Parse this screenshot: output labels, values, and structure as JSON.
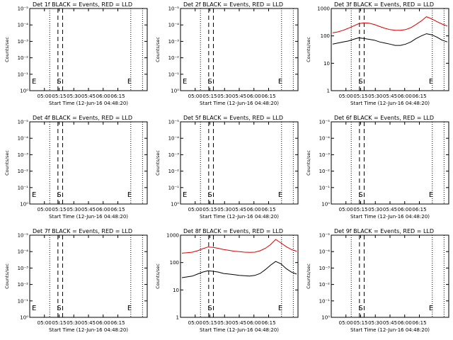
{
  "panel_size": [
    213,
    160
  ],
  "panels": [
    {
      "id": "det1",
      "title": "Det 1f BLACK = Events, RED = LLD",
      "ylabel": "Counts/sec",
      "xlabel": "Start Time (12-Jun-16 04:48:20)",
      "y_scale": "log",
      "y_ticks": [
        "10⁰",
        "10⁻¹",
        "10⁻²",
        "10⁻³",
        "10⁻⁴",
        "10⁻⁵"
      ],
      "x_ticks": [
        "05:00",
        "05:15",
        "05:30",
        "05:45",
        "06:00",
        "06:15"
      ],
      "markers": {
        "start": "S",
        "end": "E",
        "edge": "E"
      },
      "black": [],
      "red": []
    },
    {
      "id": "det2",
      "title": "Det 2f BLACK = Events, RED = LLD",
      "ylabel": "Counts/sec",
      "xlabel": "Start Time (12-Jun-16 04:48:20)",
      "y_scale": "log",
      "y_ticks": [
        "10⁰",
        "10⁻¹",
        "10⁻²",
        "10⁻³",
        "10⁻⁴",
        "10⁻⁵"
      ],
      "x_ticks": [
        "05:00",
        "05:15",
        "05:30",
        "05:45",
        "06:00",
        "06:15"
      ],
      "markers": {
        "start": "S",
        "end": "E",
        "edge": "E"
      },
      "black": [],
      "red": []
    },
    {
      "id": "det3",
      "title": "Det 3f BLACK = Events, RED = LLD",
      "ylabel": "Counts/sec",
      "xlabel": "Start Time (12-Jun-16 04:48:20)",
      "y_scale": "log",
      "y_ticks": [
        "1",
        "10",
        "100",
        "1000"
      ],
      "x_ticks": [
        "05:00",
        "05:15",
        "05:30",
        "05:45",
        "06:00",
        "06:15"
      ],
      "markers": {
        "start": "S",
        "end": "E",
        "edge": ""
      },
      "black": [
        [
          0,
          50
        ],
        [
          1,
          55
        ],
        [
          2,
          60
        ],
        [
          3,
          65
        ],
        [
          4,
          75
        ],
        [
          5,
          85
        ],
        [
          6,
          80
        ],
        [
          7,
          75
        ],
        [
          8,
          70
        ],
        [
          9,
          60
        ],
        [
          10,
          55
        ],
        [
          11,
          50
        ],
        [
          12,
          45
        ],
        [
          13,
          45
        ],
        [
          14,
          50
        ],
        [
          15,
          60
        ],
        [
          16,
          80
        ],
        [
          17,
          100
        ],
        [
          18,
          120
        ],
        [
          19,
          110
        ],
        [
          20,
          90
        ],
        [
          21,
          70
        ],
        [
          22,
          60
        ]
      ],
      "red": [
        [
          0,
          130
        ],
        [
          1,
          140
        ],
        [
          2,
          160
        ],
        [
          3,
          190
        ],
        [
          4,
          230
        ],
        [
          5,
          280
        ],
        [
          6,
          300
        ],
        [
          7,
          290
        ],
        [
          8,
          260
        ],
        [
          9,
          220
        ],
        [
          10,
          190
        ],
        [
          11,
          170
        ],
        [
          12,
          160
        ],
        [
          13,
          160
        ],
        [
          14,
          170
        ],
        [
          15,
          200
        ],
        [
          16,
          260
        ],
        [
          17,
          350
        ],
        [
          18,
          500
        ],
        [
          19,
          420
        ],
        [
          20,
          330
        ],
        [
          21,
          270
        ],
        [
          22,
          230
        ]
      ]
    },
    {
      "id": "det4",
      "title": "Det 4f BLACK = Events, RED = LLD",
      "ylabel": "Counts/sec",
      "xlabel": "Start Time (12-Jun-16 04:48:20)",
      "y_scale": "log",
      "y_ticks": [
        "10⁰",
        "10⁻¹",
        "10⁻²",
        "10⁻³",
        "10⁻⁴",
        "10⁻⁵"
      ],
      "x_ticks": [
        "05:00",
        "05:15",
        "05:30",
        "05:45",
        "06:00",
        "06:15"
      ],
      "markers": {
        "start": "S",
        "end": "E",
        "edge": "E"
      },
      "black": [],
      "red": []
    },
    {
      "id": "det5",
      "title": "Det 5f BLACK = Events, RED = LLD",
      "ylabel": "Counts/sec",
      "xlabel": "Start Time (12-Jun-16 04:48:20)",
      "y_scale": "log",
      "y_ticks": [
        "10⁰",
        "10⁻¹",
        "10⁻²",
        "10⁻³",
        "10⁻⁴",
        "10⁻⁵"
      ],
      "x_ticks": [
        "05:00",
        "05:15",
        "05:30",
        "05:45",
        "06:00",
        "06:15"
      ],
      "markers": {
        "start": "S",
        "end": "E",
        "edge": "E"
      },
      "black": [],
      "red": []
    },
    {
      "id": "det6",
      "title": "Det 6f BLACK = Events, RED = LLD",
      "ylabel": "Counts/sec",
      "xlabel": "Start Time (12-Jun-16 04:48:20)",
      "y_scale": "log",
      "y_ticks": [
        "10⁰",
        "10⁻¹",
        "10⁻²",
        "10⁻³",
        "10⁻⁴",
        "10⁻⁵"
      ],
      "x_ticks": [
        "05:00",
        "05:15",
        "05:30",
        "05:45",
        "06:00",
        "06:15"
      ],
      "markers": {
        "start": "S",
        "end": "E",
        "edge": ""
      },
      "black": [],
      "red": []
    },
    {
      "id": "det7",
      "title": "Det 7f BLACK = Events, RED = LLD",
      "ylabel": "Counts/sec",
      "xlabel": "Start Time (12-Jun-16 04:48:20)",
      "y_scale": "log",
      "y_ticks": [
        "10⁰",
        "10⁻¹",
        "10⁻²",
        "10⁻³",
        "10⁻⁴",
        "10⁻⁵"
      ],
      "x_ticks": [
        "05:00",
        "05:15",
        "05:30",
        "05:45",
        "06:00",
        "06:15"
      ],
      "markers": {
        "start": "S",
        "end": "E",
        "edge": "E"
      },
      "black": [],
      "red": []
    },
    {
      "id": "det8",
      "title": "Det 8f BLACK = Events, RED = LLD",
      "ylabel": "Counts/sec",
      "xlabel": "Start Time (12-Jun-16 04:48:20)",
      "y_scale": "log",
      "y_ticks": [
        "1",
        "10",
        "100",
        "1000"
      ],
      "x_ticks": [
        "05:00",
        "05:15",
        "05:30",
        "05:45",
        "06:00",
        "06:15"
      ],
      "markers": {
        "start": "S",
        "end": "E",
        "edge": ""
      },
      "black": [
        [
          0,
          28
        ],
        [
          1,
          30
        ],
        [
          2,
          32
        ],
        [
          3,
          38
        ],
        [
          4,
          45
        ],
        [
          5,
          50
        ],
        [
          6,
          48
        ],
        [
          7,
          45
        ],
        [
          8,
          40
        ],
        [
          9,
          38
        ],
        [
          10,
          36
        ],
        [
          11,
          34
        ],
        [
          12,
          33
        ],
        [
          13,
          32
        ],
        [
          14,
          34
        ],
        [
          15,
          40
        ],
        [
          16,
          55
        ],
        [
          17,
          80
        ],
        [
          18,
          110
        ],
        [
          19,
          90
        ],
        [
          20,
          60
        ],
        [
          21,
          45
        ],
        [
          22,
          38
        ]
      ],
      "red": [
        [
          0,
          220
        ],
        [
          1,
          230
        ],
        [
          2,
          240
        ],
        [
          3,
          270
        ],
        [
          4,
          320
        ],
        [
          5,
          370
        ],
        [
          6,
          360
        ],
        [
          7,
          330
        ],
        [
          8,
          300
        ],
        [
          9,
          280
        ],
        [
          10,
          260
        ],
        [
          11,
          250
        ],
        [
          12,
          240
        ],
        [
          13,
          235
        ],
        [
          14,
          240
        ],
        [
          15,
          270
        ],
        [
          16,
          330
        ],
        [
          17,
          450
        ],
        [
          18,
          700
        ],
        [
          19,
          520
        ],
        [
          20,
          380
        ],
        [
          21,
          300
        ],
        [
          22,
          260
        ]
      ]
    },
    {
      "id": "det9",
      "title": "Det 9f BLACK = Events, RED = LLD",
      "ylabel": "Counts/sec",
      "xlabel": "Start Time (12-Jun-16 04:48:20)",
      "y_scale": "log",
      "y_ticks": [
        "10⁰",
        "10⁻¹",
        "10⁻²",
        "10⁻³",
        "10⁻⁴",
        "10⁻⁵"
      ],
      "x_ticks": [
        "05:00",
        "05:15",
        "05:30",
        "05:45",
        "06:00",
        "06:15"
      ],
      "markers": {
        "start": "S",
        "end": "E",
        "edge": ""
      },
      "black": [],
      "red": []
    }
  ],
  "colors": {
    "events": "#000000",
    "lld": "#dd0000",
    "axis": "#000000"
  },
  "chart_data": [
    {
      "type": "line",
      "title": "Det 3f BLACK = Events, RED = LLD",
      "xlabel": "Start Time (12-Jun-16 04:48:20)",
      "ylabel": "Counts/sec",
      "y_scale": "log",
      "ylim": [
        1,
        1000
      ],
      "x": [
        "04:50",
        "04:55",
        "05:00",
        "05:05",
        "05:10",
        "05:15",
        "05:20",
        "05:25",
        "05:30",
        "05:35",
        "05:40",
        "05:45",
        "05:50",
        "05:55",
        "06:00",
        "06:05",
        "06:10",
        "06:15",
        "06:20",
        "06:25",
        "06:30",
        "06:35",
        "06:40"
      ],
      "series": [
        {
          "name": "BLACK = Events",
          "values": [
            50,
            55,
            60,
            65,
            75,
            85,
            80,
            75,
            70,
            60,
            55,
            50,
            45,
            45,
            50,
            60,
            80,
            100,
            120,
            110,
            90,
            70,
            60
          ]
        },
        {
          "name": "RED = LLD",
          "values": [
            130,
            140,
            160,
            190,
            230,
            280,
            300,
            290,
            260,
            220,
            190,
            170,
            160,
            160,
            170,
            200,
            260,
            350,
            500,
            420,
            330,
            270,
            230
          ]
        }
      ]
    },
    {
      "type": "line",
      "title": "Det 8f BLACK = Events, RED = LLD",
      "xlabel": "Start Time (12-Jun-16 04:48:20)",
      "ylabel": "Counts/sec",
      "y_scale": "log",
      "ylim": [
        1,
        1000
      ],
      "x": [
        "04:50",
        "04:55",
        "05:00",
        "05:05",
        "05:10",
        "05:15",
        "05:20",
        "05:25",
        "05:30",
        "05:35",
        "05:40",
        "05:45",
        "05:50",
        "05:55",
        "06:00",
        "06:05",
        "06:10",
        "06:15",
        "06:20",
        "06:25",
        "06:30",
        "06:35",
        "06:40"
      ],
      "series": [
        {
          "name": "BLACK = Events",
          "values": [
            28,
            30,
            32,
            38,
            45,
            50,
            48,
            45,
            40,
            38,
            36,
            34,
            33,
            32,
            34,
            40,
            55,
            80,
            110,
            90,
            60,
            45,
            38
          ]
        },
        {
          "name": "RED = LLD",
          "values": [
            220,
            230,
            240,
            270,
            320,
            370,
            360,
            330,
            300,
            280,
            260,
            250,
            240,
            235,
            240,
            270,
            330,
            450,
            700,
            520,
            380,
            300,
            260
          ]
        }
      ]
    }
  ]
}
